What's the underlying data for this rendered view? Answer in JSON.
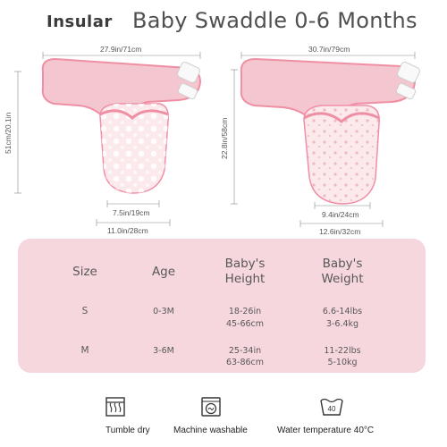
{
  "header": {
    "brand": "Insular",
    "title": "Baby Swaddle 0-6 Months"
  },
  "small_swaddle": {
    "width_label": "27.9in/71cm",
    "height_label": "51cm/20.1in",
    "bottom_width_label": "7.5in/19cm",
    "bottom_total_label": "11.0in/28cm"
  },
  "large_swaddle": {
    "width_label": "30.7in/79cm",
    "height_label": "22.8in/58cm",
    "bottom_width_label": "9.4in/24cm",
    "bottom_total_label": "12.6in/32cm"
  },
  "size_table": {
    "headers": [
      "Size",
      "Age",
      "Baby's\nHeight",
      "Baby's\nWeight"
    ],
    "rows": [
      {
        "size": "S",
        "age": "0-3M",
        "height": [
          "18-26in",
          "45-66cm"
        ],
        "weight": [
          "6.6-14lbs",
          "3-6.4kg"
        ]
      },
      {
        "size": "M",
        "age": "3-6M",
        "height": [
          "25-34in",
          "63-86cm"
        ],
        "weight": [
          "11-22lbs",
          "5-10kg"
        ]
      }
    ]
  },
  "care": [
    {
      "icon": "tumble-dry-icon",
      "label": "Tumble dry"
    },
    {
      "icon": "machine-wash-icon",
      "label": "Machine washable"
    },
    {
      "icon": "water-temperature-icon",
      "label": "Water temperature 40°C",
      "badge": "40"
    }
  ],
  "colors": {
    "table_bg": "#f6d7de",
    "fabric_pink": "#f4c6cf",
    "trim_pink": "#ef8fa4",
    "fabric_light": "#fbe9ec"
  }
}
